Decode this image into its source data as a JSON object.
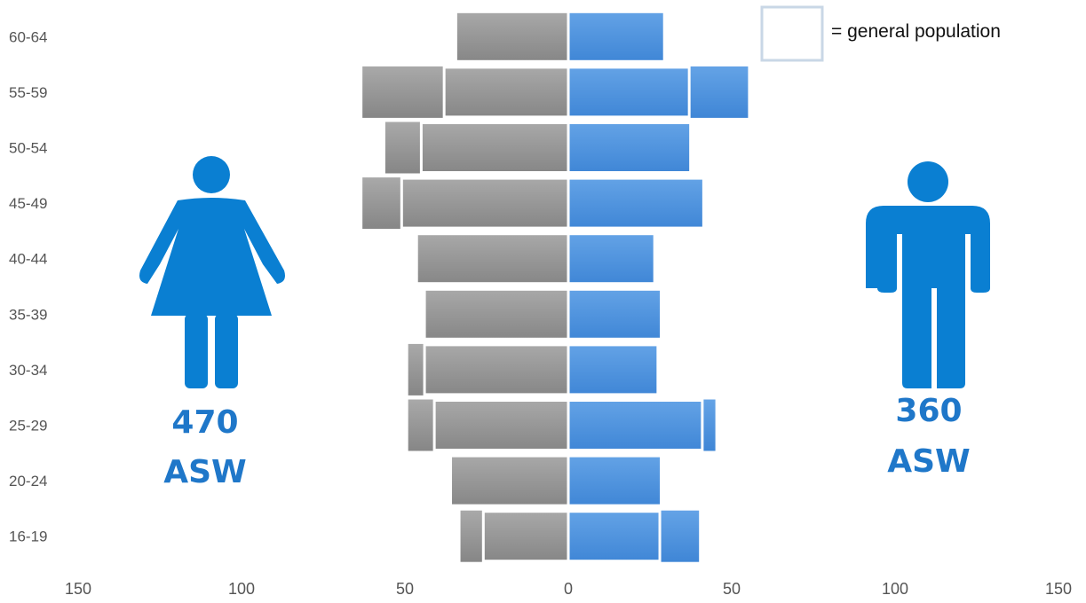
{
  "chart_data": {
    "type": "bar",
    "orientation": "horizontal",
    "layout": "population-pyramid",
    "categories": [
      "60-64",
      "55-59",
      "50-54",
      "45-49",
      "40-44",
      "35-39",
      "30-34",
      "25-29",
      "20-24",
      "16-19"
    ],
    "series": [
      {
        "side": "left",
        "values": [
          34,
          63,
          56,
          63,
          46,
          44,
          49,
          49,
          36,
          33
        ]
      },
      {
        "side": "right",
        "values": [
          29,
          55,
          37,
          41,
          26,
          28,
          27,
          45,
          28,
          40
        ]
      },
      {
        "side": "left",
        "name": "general population",
        "values": [
          35,
          38,
          45,
          51,
          51,
          44,
          44,
          41,
          36,
          26
        ]
      },
      {
        "side": "right",
        "name": "general population",
        "values": [
          35,
          37,
          43,
          51,
          51,
          44,
          45,
          41,
          37,
          28
        ]
      }
    ],
    "xlim": [
      -150,
      150
    ],
    "xticks": [
      "150",
      "100",
      "50",
      "0",
      "50",
      "100",
      "150"
    ],
    "legend": {
      "text": "= general population",
      "placement": "top-right"
    },
    "annotations": {
      "left": {
        "count": "470",
        "label": "ASW"
      },
      "right": {
        "count": "360",
        "label": "ASW"
      }
    },
    "colors": {
      "left": "#8f8f8f",
      "right": "#4a8fdc",
      "outline": "#ffffff",
      "icon": "#0a7fd2",
      "text": "#1f77c9"
    },
    "icons": {
      "left": "female-figure-icon",
      "right": "male-figure-icon"
    }
  }
}
